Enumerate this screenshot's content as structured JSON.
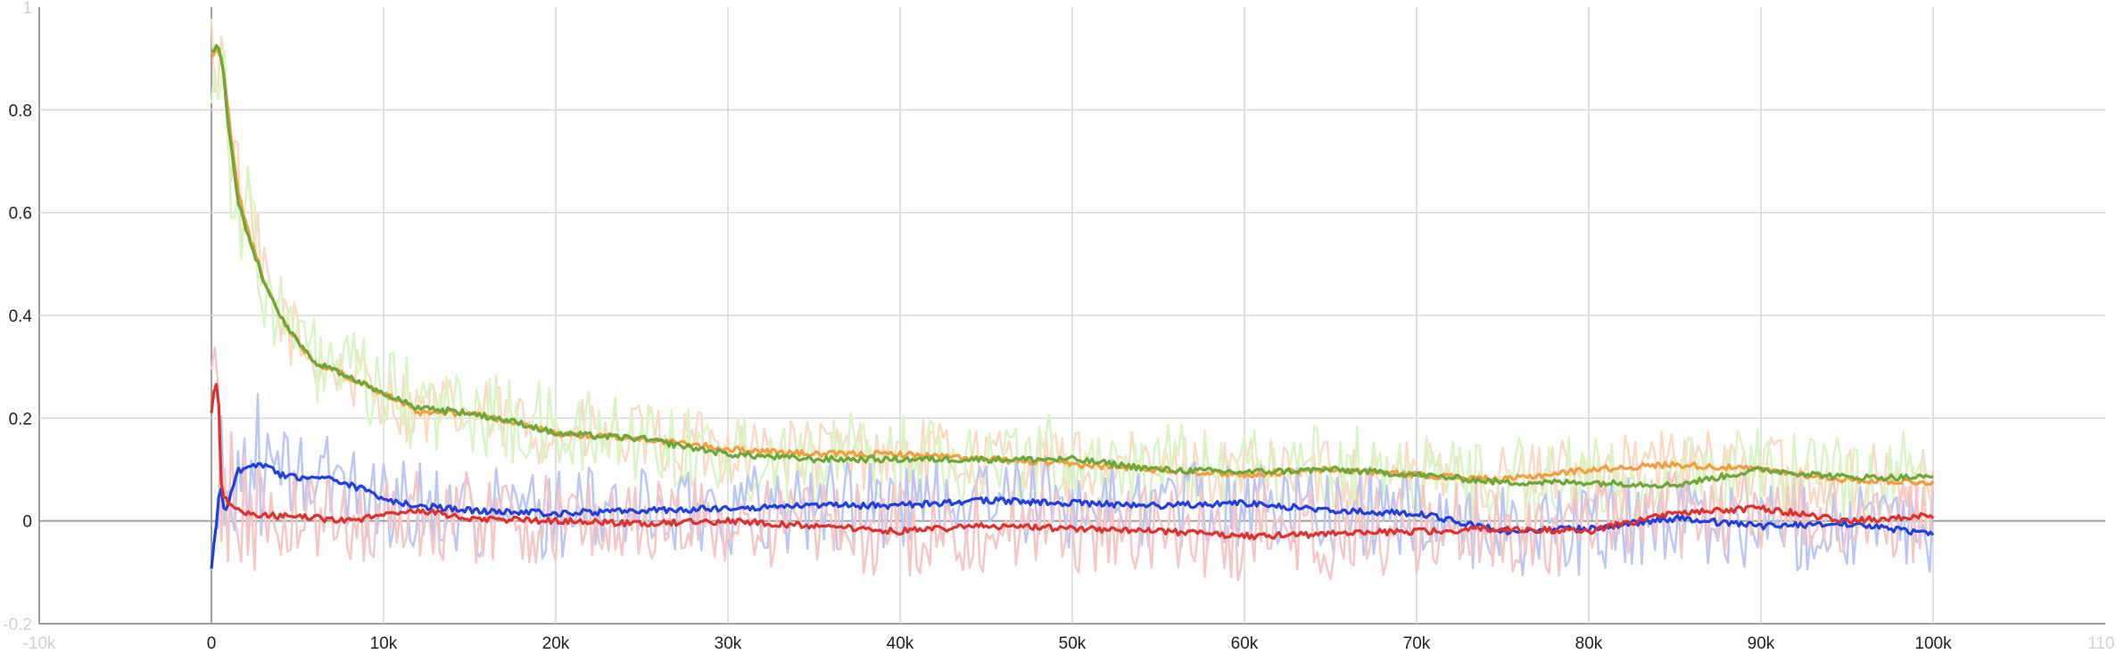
{
  "chart_data": {
    "type": "line",
    "title": "",
    "xlabel": "",
    "ylabel": "",
    "xlim": [
      -10000,
      110000
    ],
    "ylim": [
      -0.2,
      1.0
    ],
    "grid": true,
    "legend": "none",
    "x_ticks": [
      {
        "value": -10000,
        "label": "-10k",
        "faint": true
      },
      {
        "value": 0,
        "label": "0"
      },
      {
        "value": 10000,
        "label": "10k"
      },
      {
        "value": 20000,
        "label": "20k"
      },
      {
        "value": 30000,
        "label": "30k"
      },
      {
        "value": 40000,
        "label": "40k"
      },
      {
        "value": 50000,
        "label": "50k"
      },
      {
        "value": 60000,
        "label": "60k"
      },
      {
        "value": 70000,
        "label": "70k"
      },
      {
        "value": 80000,
        "label": "80k"
      },
      {
        "value": 90000,
        "label": "90k"
      },
      {
        "value": 100000,
        "label": "100k"
      },
      {
        "value": 110000,
        "label": "110k",
        "faint": true
      }
    ],
    "y_ticks": [
      {
        "value": -0.2,
        "label": "-0.2",
        "faint": true
      },
      {
        "value": 0,
        "label": "0"
      },
      {
        "value": 0.2,
        "label": "0.2"
      },
      {
        "value": 0.4,
        "label": "0.4"
      },
      {
        "value": 0.6,
        "label": "0.6"
      },
      {
        "value": 0.8,
        "label": "0.8"
      },
      {
        "value": 1.0,
        "label": "1",
        "faint": true
      }
    ],
    "series": [
      {
        "color": "#f59d3d",
        "raw_color": "#fcd9c2",
        "noise": 0.07,
        "smoothed": [
          [
            0,
            0.9
          ],
          [
            300,
            0.92
          ],
          [
            600,
            0.9
          ],
          [
            1000,
            0.79
          ],
          [
            1500,
            0.65
          ],
          [
            2000,
            0.58
          ],
          [
            3000,
            0.47
          ],
          [
            4000,
            0.4
          ],
          [
            5000,
            0.35
          ],
          [
            6000,
            0.31
          ],
          [
            8000,
            0.28
          ],
          [
            10000,
            0.25
          ],
          [
            12000,
            0.21
          ],
          [
            15000,
            0.21
          ],
          [
            18000,
            0.19
          ],
          [
            20000,
            0.17
          ],
          [
            25000,
            0.16
          ],
          [
            30000,
            0.14
          ],
          [
            35000,
            0.13
          ],
          [
            40000,
            0.13
          ],
          [
            45000,
            0.12
          ],
          [
            50000,
            0.11
          ],
          [
            55000,
            0.1
          ],
          [
            60000,
            0.09
          ],
          [
            65000,
            0.1
          ],
          [
            70000,
            0.09
          ],
          [
            75000,
            0.08
          ],
          [
            80000,
            0.1
          ],
          [
            85000,
            0.11
          ],
          [
            90000,
            0.1
          ],
          [
            95000,
            0.08
          ],
          [
            100000,
            0.075
          ]
        ]
      },
      {
        "color": "#6aa737",
        "raw_color": "#d9f5c4",
        "noise": 0.09,
        "smoothed": [
          [
            0,
            0.91
          ],
          [
            300,
            0.93
          ],
          [
            600,
            0.9
          ],
          [
            1000,
            0.77
          ],
          [
            1500,
            0.63
          ],
          [
            2000,
            0.57
          ],
          [
            3000,
            0.47
          ],
          [
            4000,
            0.4
          ],
          [
            5000,
            0.35
          ],
          [
            6000,
            0.31
          ],
          [
            8000,
            0.28
          ],
          [
            10000,
            0.25
          ],
          [
            12000,
            0.22
          ],
          [
            15000,
            0.21
          ],
          [
            18000,
            0.19
          ],
          [
            20000,
            0.17
          ],
          [
            25000,
            0.16
          ],
          [
            30000,
            0.13
          ],
          [
            35000,
            0.12
          ],
          [
            40000,
            0.12
          ],
          [
            45000,
            0.12
          ],
          [
            50000,
            0.12
          ],
          [
            55000,
            0.1
          ],
          [
            60000,
            0.095
          ],
          [
            65000,
            0.1
          ],
          [
            70000,
            0.09
          ],
          [
            75000,
            0.075
          ],
          [
            80000,
            0.075
          ],
          [
            85000,
            0.07
          ],
          [
            90000,
            0.1
          ],
          [
            95000,
            0.085
          ],
          [
            100000,
            0.085
          ]
        ]
      },
      {
        "color": "#1f3fe0",
        "raw_color": "#bcc6f4",
        "noise": 0.09,
        "smoothed": [
          [
            0,
            -0.09
          ],
          [
            300,
            0.0
          ],
          [
            500,
            0.08
          ],
          [
            800,
            0.01
          ],
          [
            1200,
            0.06
          ],
          [
            1500,
            0.1
          ],
          [
            2000,
            0.1
          ],
          [
            3000,
            0.11
          ],
          [
            4000,
            0.09
          ],
          [
            5000,
            0.085
          ],
          [
            7000,
            0.08
          ],
          [
            9000,
            0.06
          ],
          [
            10000,
            0.04
          ],
          [
            12000,
            0.03
          ],
          [
            15000,
            0.02
          ],
          [
            20000,
            0.015
          ],
          [
            25000,
            0.02
          ],
          [
            30000,
            0.025
          ],
          [
            35000,
            0.03
          ],
          [
            40000,
            0.03
          ],
          [
            45000,
            0.04
          ],
          [
            50000,
            0.035
          ],
          [
            55000,
            0.03
          ],
          [
            60000,
            0.035
          ],
          [
            65000,
            0.02
          ],
          [
            70000,
            0.015
          ],
          [
            75000,
            -0.02
          ],
          [
            80000,
            -0.015
          ],
          [
            85000,
            0.005
          ],
          [
            90000,
            -0.01
          ],
          [
            95000,
            -0.005
          ],
          [
            100000,
            -0.025
          ]
        ]
      },
      {
        "color": "#e0302b",
        "raw_color": "#f6c6c6",
        "noise": 0.09,
        "smoothed": [
          [
            0,
            0.21
          ],
          [
            200,
            0.27
          ],
          [
            400,
            0.26
          ],
          [
            600,
            0.05
          ],
          [
            1000,
            0.035
          ],
          [
            1500,
            0.02
          ],
          [
            3000,
            0.01
          ],
          [
            5000,
            0.01
          ],
          [
            8000,
            0.0
          ],
          [
            10000,
            0.01
          ],
          [
            12000,
            0.02
          ],
          [
            15000,
            0.005
          ],
          [
            20000,
            0.0
          ],
          [
            25000,
            -0.005
          ],
          [
            30000,
            0.0
          ],
          [
            35000,
            -0.01
          ],
          [
            40000,
            -0.02
          ],
          [
            45000,
            -0.01
          ],
          [
            50000,
            -0.015
          ],
          [
            55000,
            -0.02
          ],
          [
            60000,
            -0.03
          ],
          [
            65000,
            -0.025
          ],
          [
            70000,
            -0.02
          ],
          [
            75000,
            -0.015
          ],
          [
            80000,
            -0.02
          ],
          [
            85000,
            0.015
          ],
          [
            90000,
            0.025
          ],
          [
            95000,
            0.0
          ],
          [
            100000,
            0.01
          ]
        ]
      }
    ]
  }
}
